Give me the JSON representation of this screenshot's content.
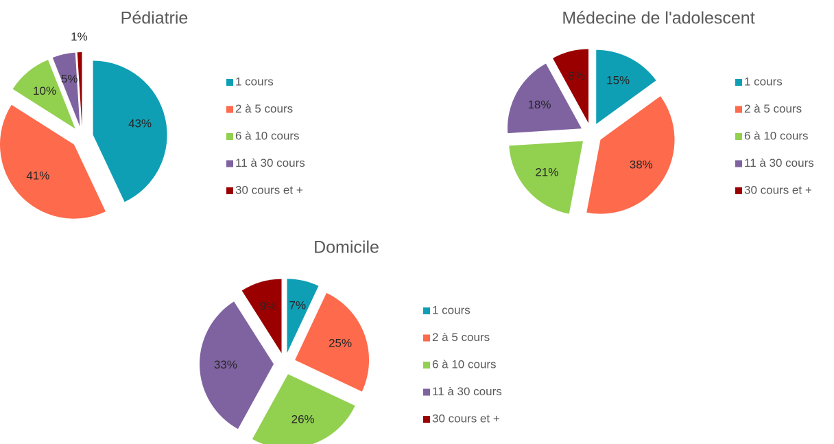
{
  "chart_data": [
    {
      "type": "pie",
      "title": "Pédiatrie",
      "categories": [
        "1 cours",
        "2 à 5 cours",
        "6 à 10 cours",
        "11 à 30 cours",
        "30 cours et +"
      ],
      "values": [
        43,
        41,
        10,
        5,
        1
      ],
      "value_labels": [
        "43%",
        "41%",
        "10%",
        "5%",
        "1%"
      ],
      "colors": [
        "#0e9fb5",
        "#fe6a4c",
        "#92d050",
        "#7f63a1",
        "#9b0000"
      ]
    },
    {
      "type": "pie",
      "title": "Médecine de l'adolescent",
      "categories": [
        "1 cours",
        "2 à 5 cours",
        "6 à 10 cours",
        "11 à 30 cours",
        "30 cours et +"
      ],
      "values": [
        15,
        38,
        21,
        18,
        8
      ],
      "value_labels": [
        "15%",
        "38%",
        "21%",
        "18%",
        "8%"
      ],
      "colors": [
        "#0e9fb5",
        "#fe6a4c",
        "#92d050",
        "#7f63a1",
        "#9b0000"
      ]
    },
    {
      "type": "pie",
      "title": "Domicile",
      "categories": [
        "1 cours",
        "2 à 5 cours",
        "6 à 10 cours",
        "11 à 30 cours",
        "30 cours et +"
      ],
      "values": [
        7,
        25,
        26,
        33,
        9
      ],
      "value_labels": [
        "7%",
        "25%",
        "26%",
        "33%",
        "9%"
      ],
      "colors": [
        "#0e9fb5",
        "#fe6a4c",
        "#92d050",
        "#7f63a1",
        "#9b0000"
      ]
    }
  ]
}
